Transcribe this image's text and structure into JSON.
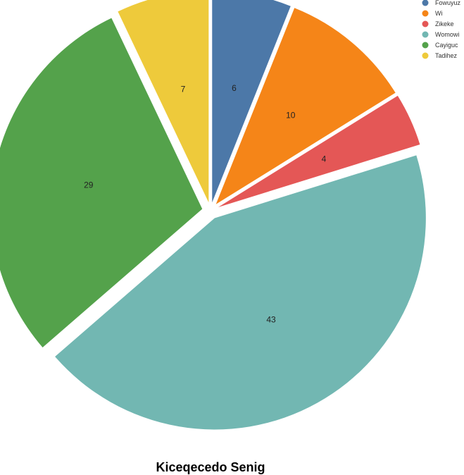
{
  "chart_data": {
    "type": "pie",
    "title": "Kiceqecedo Senig",
    "exploded": true,
    "legend_position": "top-right",
    "slices": [
      {
        "label": "Fowuyuz",
        "value": 6,
        "color": "#4c78a8"
      },
      {
        "label": "Wi",
        "value": 10,
        "color": "#f58518"
      },
      {
        "label": "Zikeke",
        "value": 4,
        "color": "#e45756"
      },
      {
        "label": "Womowi",
        "value": 43,
        "color": "#72b7b2"
      },
      {
        "label": "Cayiguc",
        "value": 29,
        "color": "#54a24b"
      },
      {
        "label": "Tadihez",
        "value": 7,
        "color": "#eeca3b"
      }
    ]
  }
}
